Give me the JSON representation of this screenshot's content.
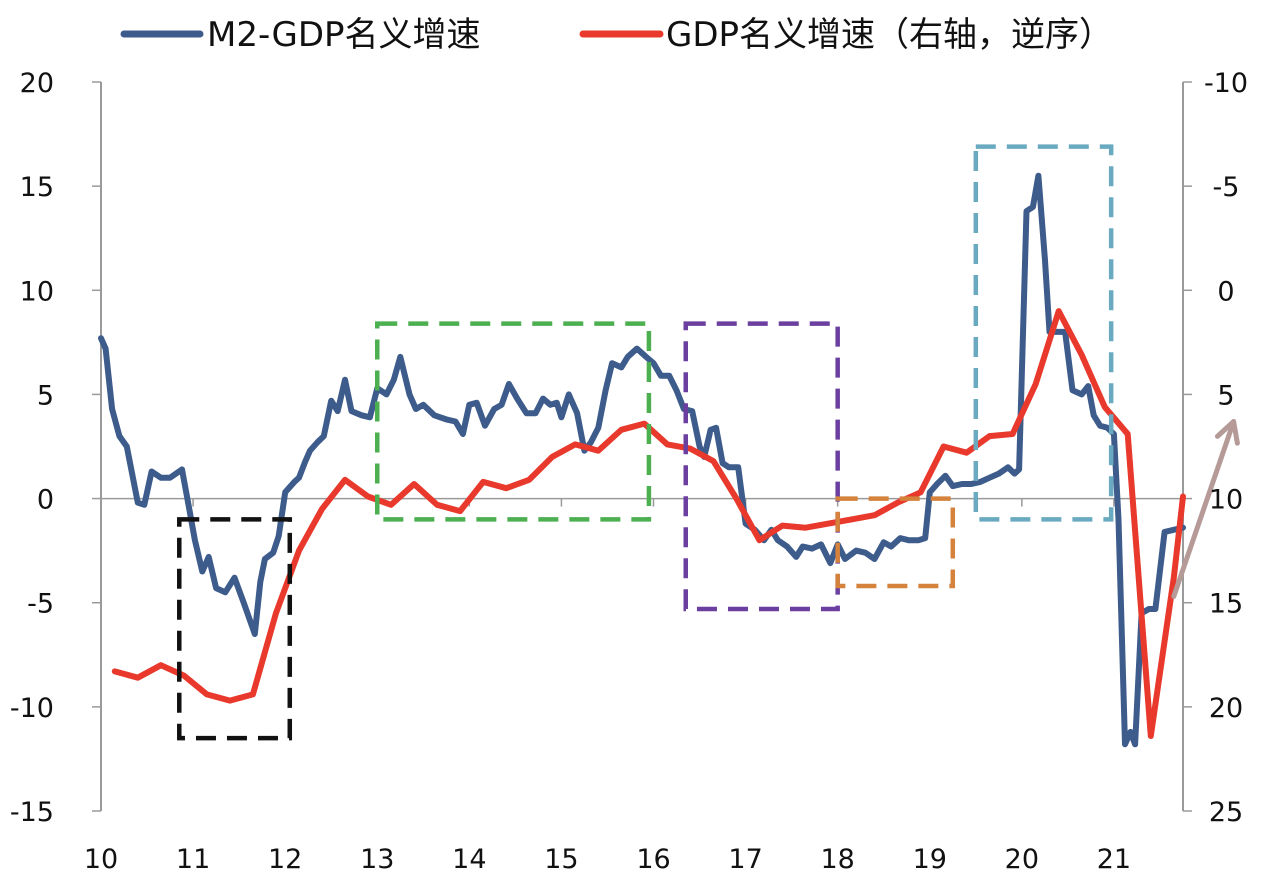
{
  "chart_data": {
    "type": "line",
    "title": "",
    "xlabel": "",
    "ylabel": "",
    "x_ticks": [
      "10",
      "11",
      "12",
      "13",
      "14",
      "15",
      "16",
      "17",
      "18",
      "19",
      "20",
      "21"
    ],
    "x_range": [
      2010,
      2021.75
    ],
    "y_left": {
      "ticks": [
        "20",
        "15",
        "10",
        "5",
        "0",
        "-5",
        "-10",
        "-15"
      ],
      "range": [
        -15,
        20
      ]
    },
    "y_right": {
      "ticks": [
        "-10",
        "-5",
        "0",
        "5",
        "10",
        "15",
        "20",
        "25"
      ],
      "range": [
        -10,
        25
      ],
      "reversed": true
    },
    "grid": false,
    "zero_line": true,
    "legend_position": "top",
    "series": [
      {
        "name": "M2-GDP名义增速",
        "axis": "left",
        "color": "#3D5C8C",
        "points": [
          [
            2010.0,
            7.7
          ],
          [
            2010.05,
            7.2
          ],
          [
            2010.12,
            4.3
          ],
          [
            2010.2,
            3.0
          ],
          [
            2010.28,
            2.5
          ],
          [
            2010.4,
            -0.2
          ],
          [
            2010.47,
            -0.3
          ],
          [
            2010.55,
            1.3
          ],
          [
            2010.65,
            1.0
          ],
          [
            2010.75,
            1.0
          ],
          [
            2010.88,
            1.4
          ],
          [
            2010.95,
            -0.3
          ],
          [
            2011.02,
            -2.0
          ],
          [
            2011.1,
            -3.5
          ],
          [
            2011.17,
            -2.8
          ],
          [
            2011.25,
            -4.3
          ],
          [
            2011.35,
            -4.5
          ],
          [
            2011.45,
            -3.8
          ],
          [
            2011.55,
            -5.0
          ],
          [
            2011.67,
            -6.5
          ],
          [
            2011.73,
            -4.0
          ],
          [
            2011.78,
            -2.9
          ],
          [
            2011.87,
            -2.6
          ],
          [
            2011.93,
            -1.8
          ],
          [
            2012.0,
            0.3
          ],
          [
            2012.1,
            0.8
          ],
          [
            2012.15,
            1.0
          ],
          [
            2012.22,
            1.8
          ],
          [
            2012.27,
            2.3
          ],
          [
            2012.35,
            2.7
          ],
          [
            2012.42,
            3.0
          ],
          [
            2012.5,
            4.7
          ],
          [
            2012.57,
            4.2
          ],
          [
            2012.65,
            5.7
          ],
          [
            2012.72,
            4.2
          ],
          [
            2012.83,
            4.0
          ],
          [
            2012.92,
            3.9
          ],
          [
            2013.0,
            5.3
          ],
          [
            2013.1,
            5.0
          ],
          [
            2013.18,
            5.7
          ],
          [
            2013.25,
            6.8
          ],
          [
            2013.35,
            5.0
          ],
          [
            2013.42,
            4.3
          ],
          [
            2013.5,
            4.5
          ],
          [
            2013.62,
            4.0
          ],
          [
            2013.75,
            3.8
          ],
          [
            2013.85,
            3.7
          ],
          [
            2013.93,
            3.1
          ],
          [
            2014.0,
            4.5
          ],
          [
            2014.08,
            4.6
          ],
          [
            2014.17,
            3.5
          ],
          [
            2014.27,
            4.3
          ],
          [
            2014.35,
            4.5
          ],
          [
            2014.43,
            5.5
          ],
          [
            2014.52,
            4.8
          ],
          [
            2014.62,
            4.1
          ],
          [
            2014.72,
            4.1
          ],
          [
            2014.8,
            4.8
          ],
          [
            2014.88,
            4.5
          ],
          [
            2014.95,
            4.6
          ],
          [
            2015.0,
            3.9
          ],
          [
            2015.08,
            5.0
          ],
          [
            2015.17,
            4.1
          ],
          [
            2015.25,
            2.3
          ],
          [
            2015.32,
            2.7
          ],
          [
            2015.4,
            3.4
          ],
          [
            2015.48,
            5.2
          ],
          [
            2015.55,
            6.5
          ],
          [
            2015.65,
            6.3
          ],
          [
            2015.72,
            6.8
          ],
          [
            2015.82,
            7.2
          ],
          [
            2015.92,
            6.8
          ],
          [
            2016.0,
            6.5
          ],
          [
            2016.08,
            5.9
          ],
          [
            2016.17,
            5.9
          ],
          [
            2016.25,
            5.2
          ],
          [
            2016.33,
            4.3
          ],
          [
            2016.42,
            4.2
          ],
          [
            2016.5,
            2.5
          ],
          [
            2016.55,
            2.0
          ],
          [
            2016.62,
            3.3
          ],
          [
            2016.68,
            3.4
          ],
          [
            2016.75,
            1.7
          ],
          [
            2016.82,
            1.5
          ],
          [
            2016.92,
            1.5
          ],
          [
            2017.0,
            -1.2
          ],
          [
            2017.1,
            -1.5
          ],
          [
            2017.2,
            -2.0
          ],
          [
            2017.28,
            -1.5
          ],
          [
            2017.35,
            -2.0
          ],
          [
            2017.45,
            -2.3
          ],
          [
            2017.55,
            -2.8
          ],
          [
            2017.62,
            -2.3
          ],
          [
            2017.72,
            -2.4
          ],
          [
            2017.82,
            -2.2
          ],
          [
            2017.92,
            -3.1
          ],
          [
            2018.0,
            -2.2
          ],
          [
            2018.08,
            -2.9
          ],
          [
            2018.2,
            -2.5
          ],
          [
            2018.3,
            -2.6
          ],
          [
            2018.4,
            -2.9
          ],
          [
            2018.5,
            -2.1
          ],
          [
            2018.58,
            -2.3
          ],
          [
            2018.68,
            -1.9
          ],
          [
            2018.77,
            -2.0
          ],
          [
            2018.88,
            -2.0
          ],
          [
            2018.95,
            -1.9
          ],
          [
            2019.0,
            0.3
          ],
          [
            2019.08,
            0.7
          ],
          [
            2019.17,
            1.1
          ],
          [
            2019.25,
            0.6
          ],
          [
            2019.35,
            0.7
          ],
          [
            2019.45,
            0.7
          ],
          [
            2019.55,
            0.8
          ],
          [
            2019.65,
            1.0
          ],
          [
            2019.75,
            1.2
          ],
          [
            2019.85,
            1.5
          ],
          [
            2019.92,
            1.2
          ],
          [
            2019.97,
            1.4
          ],
          [
            2020.05,
            13.8
          ],
          [
            2020.12,
            14.0
          ],
          [
            2020.18,
            15.5
          ],
          [
            2020.25,
            11.5
          ],
          [
            2020.3,
            8.0
          ],
          [
            2020.4,
            8.0
          ],
          [
            2020.47,
            8.0
          ],
          [
            2020.55,
            5.2
          ],
          [
            2020.65,
            5.0
          ],
          [
            2020.72,
            5.4
          ],
          [
            2020.78,
            4.0
          ],
          [
            2020.85,
            3.5
          ],
          [
            2020.93,
            3.4
          ],
          [
            2021.0,
            3.1
          ],
          [
            2021.05,
            -1.0
          ],
          [
            2021.12,
            -11.8
          ],
          [
            2021.18,
            -11.2
          ],
          [
            2021.23,
            -11.8
          ],
          [
            2021.3,
            -5.5
          ],
          [
            2021.38,
            -5.3
          ],
          [
            2021.45,
            -5.3
          ],
          [
            2021.55,
            -1.6
          ],
          [
            2021.65,
            -1.5
          ],
          [
            2021.75,
            -1.4
          ]
        ]
      },
      {
        "name": "GDP名义增速（右轴，逆序）",
        "axis": "right",
        "color": "#E8392C",
        "points": [
          [
            2010.15,
            18.3
          ],
          [
            2010.4,
            18.6
          ],
          [
            2010.65,
            18.0
          ],
          [
            2010.9,
            18.5
          ],
          [
            2011.15,
            19.4
          ],
          [
            2011.4,
            19.7
          ],
          [
            2011.65,
            19.4
          ],
          [
            2011.9,
            15.5
          ],
          [
            2012.15,
            12.5
          ],
          [
            2012.4,
            10.5
          ],
          [
            2012.65,
            9.1
          ],
          [
            2012.9,
            9.9
          ],
          [
            2013.15,
            10.3
          ],
          [
            2013.4,
            9.3
          ],
          [
            2013.65,
            10.3
          ],
          [
            2013.9,
            10.6
          ],
          [
            2014.15,
            9.2
          ],
          [
            2014.4,
            9.5
          ],
          [
            2014.65,
            9.1
          ],
          [
            2014.9,
            8.0
          ],
          [
            2015.15,
            7.4
          ],
          [
            2015.4,
            7.7
          ],
          [
            2015.65,
            6.7
          ],
          [
            2015.9,
            6.4
          ],
          [
            2016.15,
            7.4
          ],
          [
            2016.4,
            7.6
          ],
          [
            2016.65,
            8.2
          ],
          [
            2016.9,
            10.0
          ],
          [
            2017.15,
            12.0
          ],
          [
            2017.4,
            11.3
          ],
          [
            2017.65,
            11.4
          ],
          [
            2017.9,
            11.2
          ],
          [
            2018.15,
            11.0
          ],
          [
            2018.4,
            10.8
          ],
          [
            2018.65,
            10.2
          ],
          [
            2018.9,
            9.7
          ],
          [
            2019.15,
            7.5
          ],
          [
            2019.4,
            7.8
          ],
          [
            2019.65,
            7.0
          ],
          [
            2019.9,
            6.9
          ],
          [
            2020.15,
            4.5
          ],
          [
            2020.4,
            1.0
          ],
          [
            2020.65,
            3.1
          ],
          [
            2020.9,
            5.6
          ],
          [
            2021.15,
            6.9
          ],
          [
            2021.4,
            21.4
          ],
          [
            2021.65,
            13.8
          ],
          [
            2021.75,
            9.9
          ]
        ]
      }
    ],
    "annotations": [
      {
        "type": "dashed-box",
        "color": "#111111",
        "x": [
          2010.85,
          2012.05
        ],
        "y_left": [
          -11.5,
          -1.0
        ]
      },
      {
        "type": "dashed-box",
        "color": "#4CAF50",
        "x": [
          2013.0,
          2015.95
        ],
        "y_left": [
          -1.0,
          8.4
        ]
      },
      {
        "type": "dashed-box",
        "color": "#6B3FA0",
        "x": [
          2016.35,
          2018.0
        ],
        "y_left": [
          -5.3,
          8.4
        ]
      },
      {
        "type": "dashed-box",
        "color": "#D4823C",
        "x": [
          2018.0,
          2019.25
        ],
        "y_left": [
          -4.2,
          0.0
        ]
      },
      {
        "type": "dashed-box",
        "color": "#6AAAC0",
        "x": [
          2019.5,
          2020.97
        ],
        "y_left": [
          -1.0,
          16.9
        ]
      },
      {
        "type": "arrow",
        "color": "#B59A98",
        "from_x": 2021.65,
        "from_y_left": -4.7,
        "to_x": 2022.3,
        "to_y_left": 3.7
      }
    ]
  }
}
